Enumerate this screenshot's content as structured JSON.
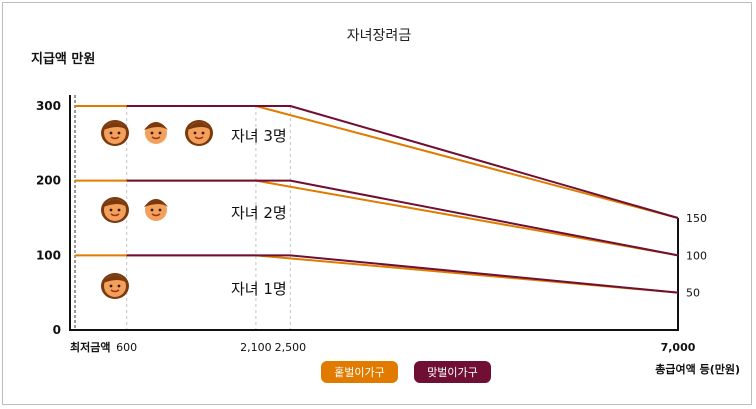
{
  "chart_data": {
    "type": "line",
    "title": "자녀장려금",
    "ylabel": "지급액 만원",
    "xlabel": "총급여액 등(만원)",
    "x_ticks": [
      {
        "value": 0,
        "label": "최저금액"
      },
      {
        "value": 600,
        "label": "600"
      },
      {
        "value": 2100,
        "label": "2,100"
      },
      {
        "value": 2500,
        "label": "2,500"
      },
      {
        "value": 7000,
        "label": "7,000"
      }
    ],
    "y_ticks": [
      0,
      100,
      200,
      300
    ],
    "right_ticks": [
      {
        "value": 150,
        "label": "150"
      },
      {
        "value": 100,
        "label": "100"
      },
      {
        "value": 50,
        "label": "50"
      }
    ],
    "xlim": [
      0,
      7000
    ],
    "ylim": [
      0,
      300
    ],
    "series": [
      {
        "name": "홑벌이가구",
        "group": "3",
        "points": [
          [
            0,
            300
          ],
          [
            2100,
            300
          ],
          [
            7000,
            150
          ]
        ]
      },
      {
        "name": "맞벌이가구",
        "group": "3",
        "points": [
          [
            600,
            300
          ],
          [
            2500,
            300
          ],
          [
            7000,
            150
          ]
        ]
      },
      {
        "name": "홑벌이가구",
        "group": "2",
        "points": [
          [
            0,
            200
          ],
          [
            2100,
            200
          ],
          [
            7000,
            100
          ]
        ]
      },
      {
        "name": "맞벌이가구",
        "group": "2",
        "points": [
          [
            600,
            200
          ],
          [
            2500,
            200
          ],
          [
            7000,
            100
          ]
        ]
      },
      {
        "name": "홑벌이가구",
        "group": "1",
        "points": [
          [
            0,
            100
          ],
          [
            2100,
            100
          ],
          [
            7000,
            50
          ]
        ]
      },
      {
        "name": "맞벌이가구",
        "group": "1",
        "points": [
          [
            600,
            100
          ],
          [
            2500,
            100
          ],
          [
            7000,
            50
          ]
        ]
      }
    ],
    "annotations": [
      {
        "text": "자녀 3명",
        "x": 2600,
        "y": 250,
        "kids": 3
      },
      {
        "text": "자녀 2명",
        "x": 2600,
        "y": 150,
        "kids": 2
      },
      {
        "text": "자녀 1명",
        "x": 2600,
        "y": 50,
        "kids": 1
      }
    ],
    "legend": [
      {
        "label": "홑벌이가구",
        "color": "#e07b00"
      },
      {
        "label": "맞벌이가구",
        "color": "#6e0f33"
      }
    ],
    "legend_position": "bottom"
  }
}
